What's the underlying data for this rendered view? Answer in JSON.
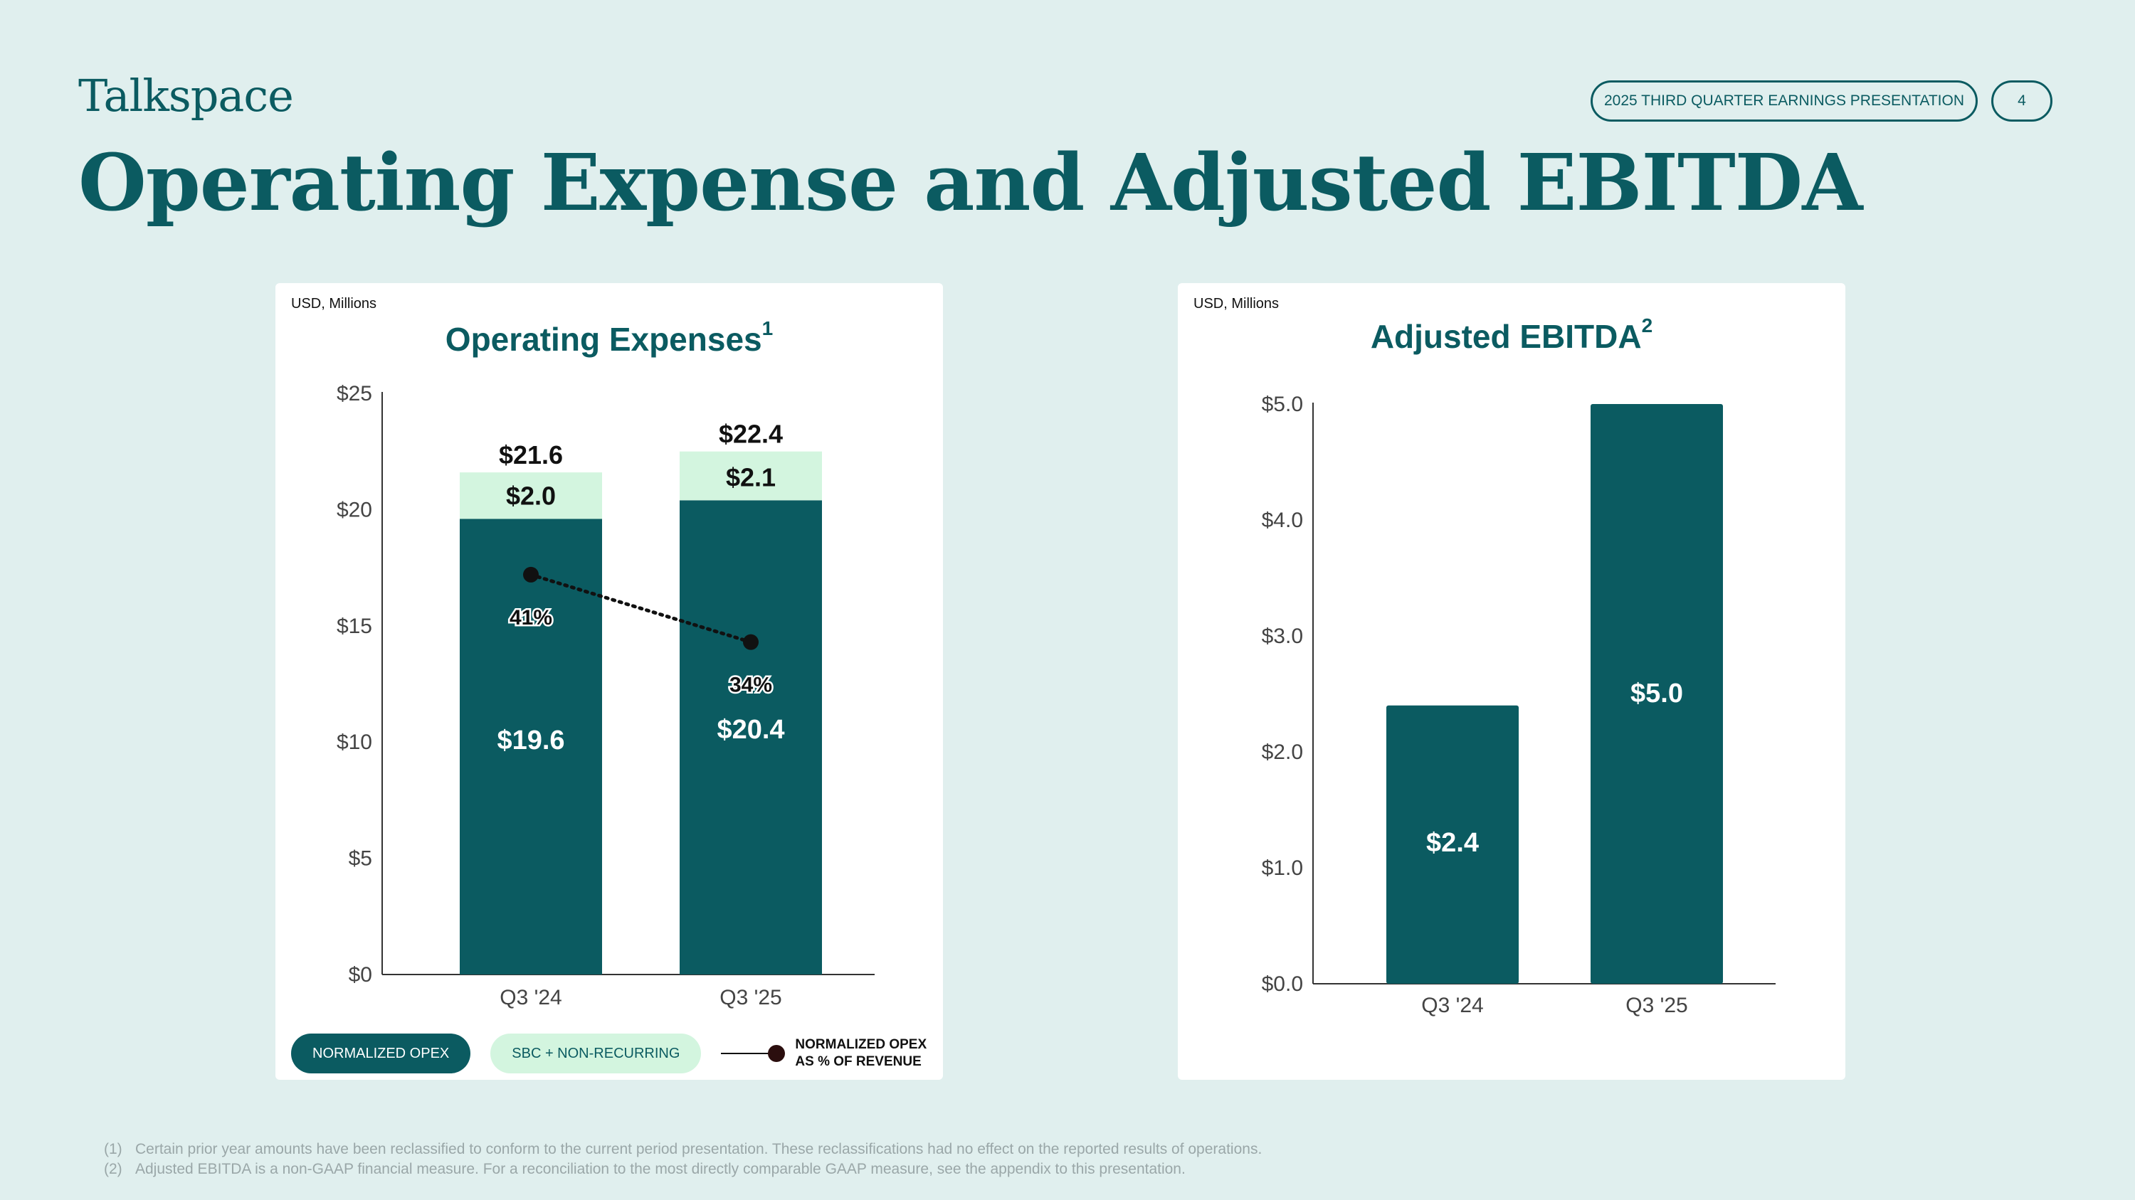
{
  "header": {
    "logo": "Talkspace",
    "presentation_label": "2025 THIRD QUARTER EARNINGS PRESENTATION",
    "page_number": "4",
    "title": "Operating Expense and Adjusted EBITDA"
  },
  "colors": {
    "brand_teal": "#0b5b61",
    "light_green": "#d3f5df",
    "background": "#e0efee"
  },
  "chart_data": [
    {
      "type": "bar",
      "stacked": true,
      "unit_label": "USD, Millions",
      "title": "Operating Expenses",
      "title_footnote": "1",
      "categories": [
        "Q3 '24",
        "Q3 '25"
      ],
      "series": [
        {
          "name": "NORMALIZED OPEX",
          "values": [
            19.6,
            20.4
          ],
          "labels": [
            "$19.6",
            "$20.4"
          ],
          "color": "#0b5b61"
        },
        {
          "name": "SBC + NON-RECURRING",
          "values": [
            2.0,
            2.1
          ],
          "labels": [
            "$2.0",
            "$2.1"
          ],
          "color": "#d3f5df"
        }
      ],
      "totals": [
        21.6,
        22.4
      ],
      "total_labels": [
        "$21.6",
        "$22.4"
      ],
      "line_series": {
        "name": "NORMALIZED OPEX AS % OF REVENUE",
        "values": [
          41,
          34
        ],
        "labels": [
          "41%",
          "34%"
        ],
        "display_y": [
          17.2,
          14.3
        ]
      },
      "ylim": [
        0,
        25
      ],
      "yticks": [
        0,
        5,
        10,
        15,
        20,
        25
      ],
      "ytick_labels": [
        "$0",
        "$5",
        "$10",
        "$15",
        "$20",
        "$25"
      ],
      "legend": {
        "item1": "NORMALIZED OPEX",
        "item2": "SBC + NON-RECURRING",
        "item3_line1": "NORMALIZED OPEX",
        "item3_line2": "AS % OF REVENUE"
      }
    },
    {
      "type": "bar",
      "unit_label": "USD, Millions",
      "title": "Adjusted EBITDA",
      "title_footnote": "2",
      "categories": [
        "Q3 '24",
        "Q3 '25"
      ],
      "values": [
        2.4,
        5.0
      ],
      "labels": [
        "$2.4",
        "$5.0"
      ],
      "ylim": [
        0,
        5.0
      ],
      "yticks": [
        0,
        1,
        2,
        3,
        4,
        5
      ],
      "ytick_labels": [
        "$0.0",
        "$1.0",
        "$2.0",
        "$3.0",
        "$4.0",
        "$5.0"
      ]
    }
  ],
  "footnotes": [
    {
      "num": "(1)",
      "text": "Certain prior year amounts have been reclassified to conform to the current period presentation. These reclassifications had no effect on the reported results of operations."
    },
    {
      "num": "(2)",
      "text": "Adjusted EBITDA is a non-GAAP financial measure. For a reconciliation to the most directly comparable GAAP measure, see the appendix to this presentation."
    }
  ]
}
